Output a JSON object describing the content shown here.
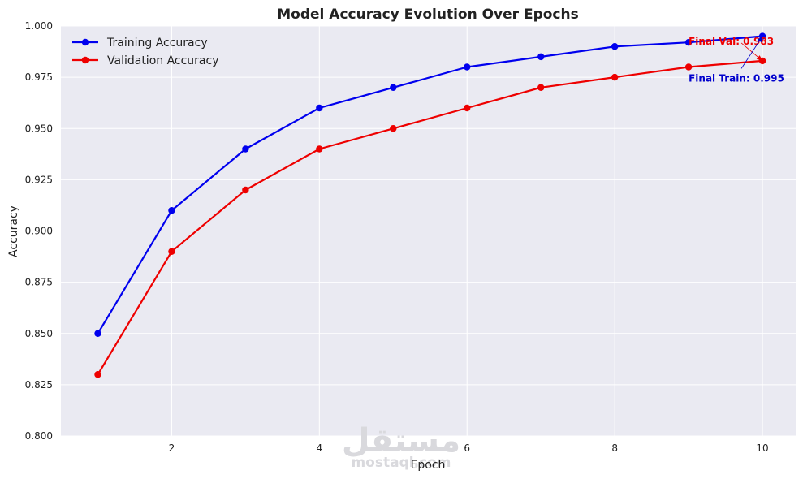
{
  "chart_data": {
    "type": "line",
    "title": "Model Accuracy Evolution Over Epochs",
    "xlabel": "Epoch",
    "ylabel": "Accuracy",
    "x": [
      1,
      2,
      3,
      4,
      5,
      6,
      7,
      8,
      9,
      10
    ],
    "xlim": [
      0.5,
      10.45
    ],
    "ylim": [
      0.8,
      1.0
    ],
    "xticks": [
      2,
      4,
      6,
      8,
      10
    ],
    "yticks": [
      0.8,
      0.825,
      0.85,
      0.875,
      0.9,
      0.925,
      0.95,
      0.975,
      1.0
    ],
    "ytick_labels": [
      "0.800",
      "0.825",
      "0.850",
      "0.875",
      "0.900",
      "0.925",
      "0.950",
      "0.975",
      "1.000"
    ],
    "grid": true,
    "legend_position": "top-left",
    "background": "#eaeaf2",
    "series": [
      {
        "name": "Training Accuracy",
        "color": "#0000ee",
        "values": [
          0.85,
          0.91,
          0.94,
          0.96,
          0.97,
          0.98,
          0.985,
          0.99,
          0.992,
          0.995
        ]
      },
      {
        "name": "Validation Accuracy",
        "color": "#ee0000",
        "values": [
          0.83,
          0.89,
          0.92,
          0.94,
          0.95,
          0.96,
          0.97,
          0.975,
          0.98,
          0.983
        ]
      }
    ],
    "annotations": [
      {
        "text": "Final Val: 0.983",
        "color": "#ee0000",
        "point_x": 10,
        "point_y": 0.983,
        "text_x": 9.0,
        "text_y": 0.9925
      },
      {
        "text": "Final Train: 0.995",
        "color": "#0000cc",
        "point_x": 10,
        "point_y": 0.995,
        "text_x": 9.0,
        "text_y": 0.9745
      }
    ]
  },
  "watermark": {
    "arabic": "مستقل",
    "latin": "mostaql.com"
  }
}
